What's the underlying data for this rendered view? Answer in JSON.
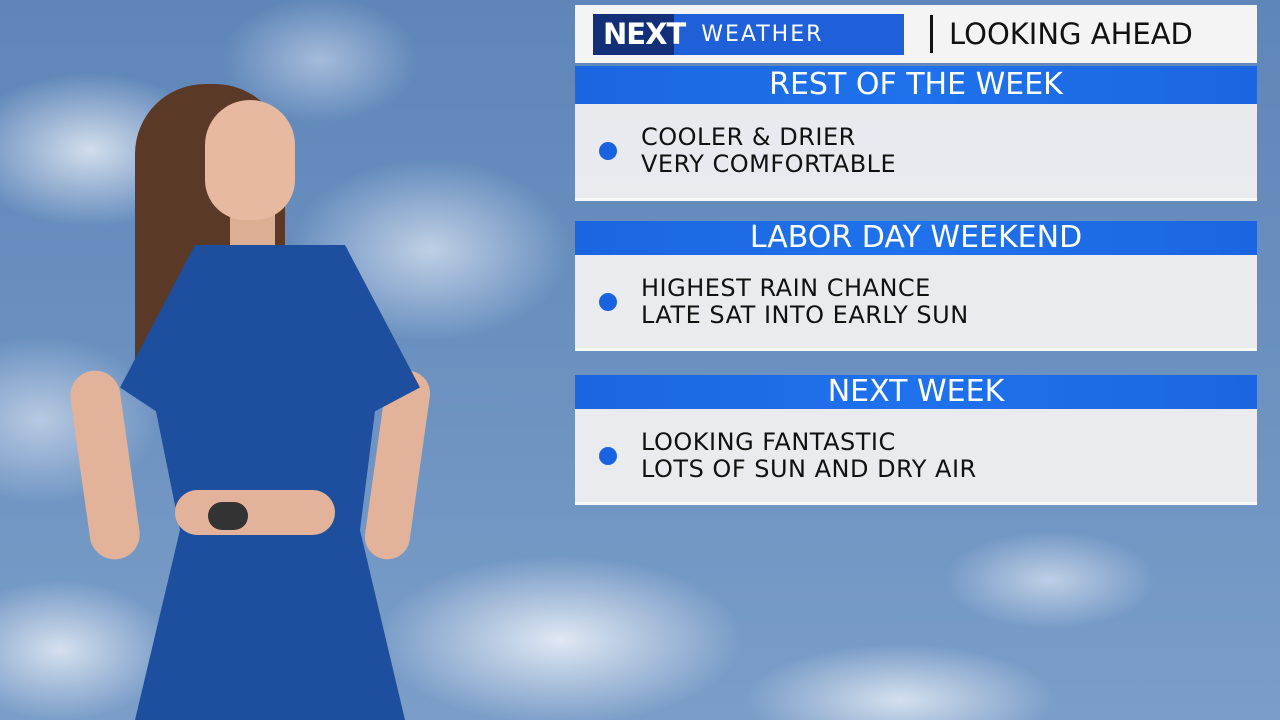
{
  "header": {
    "logo_text": "NEXT WEATHER",
    "logo_next": "NEXT",
    "logo_weather": "WEATHER",
    "title": "LOOKING AHEAD"
  },
  "sections": [
    {
      "heading": "REST OF THE WEEK",
      "lines": [
        "COOLER & DRIER",
        "VERY COMFORTABLE"
      ]
    },
    {
      "heading": "LABOR DAY WEEKEND",
      "lines": [
        "HIGHEST RAIN CHANCE",
        "LATE SAT INTO EARLY SUN"
      ]
    },
    {
      "heading": "NEXT WEEK",
      "lines": [
        "LOOKING FANTASTIC",
        "LOTS OF SUN AND DRY AIR"
      ]
    }
  ],
  "colors": {
    "band": "#1b66e0",
    "bullet": "#1a63e0",
    "logo_dark": "#122f78",
    "logo_blue": "#1f5fd8"
  }
}
